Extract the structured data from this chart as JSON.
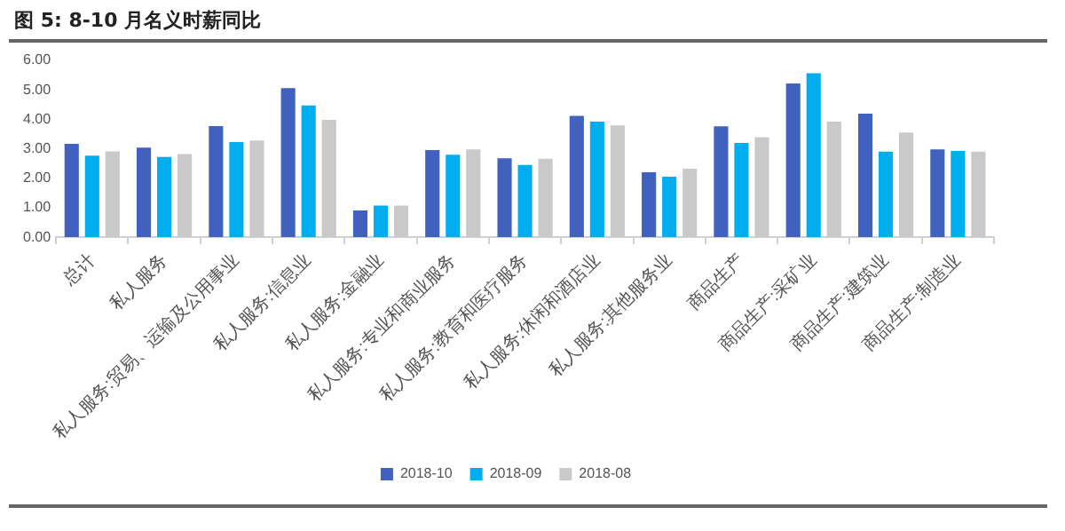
{
  "chart_data": {
    "type": "bar",
    "title": "图 5: 8-10 月名义时薪同比",
    "categories": [
      "总计",
      "私人服务",
      "私人服务:贸易、运输及公用事业",
      "私人服务:信息业",
      "私人服务:金融业",
      "私人服务:专业和商业服务",
      "私人服务:教育和医疗服务",
      "私人服务:休闲和酒店业",
      "私人服务:其他服务业",
      "商品生产",
      "商品生产:采矿业",
      "商品生产:建筑业",
      "商品生产:制造业"
    ],
    "series": [
      {
        "name": "2018-10",
        "color": "#4062be",
        "values": [
          3.17,
          3.04,
          3.77,
          5.06,
          0.91,
          2.96,
          2.68,
          4.12,
          2.2,
          3.76,
          5.22,
          4.19,
          2.98
        ]
      },
      {
        "name": "2018-09",
        "color": "#00aeef",
        "values": [
          2.77,
          2.72,
          3.23,
          4.47,
          1.07,
          2.8,
          2.45,
          3.92,
          2.05,
          3.2,
          5.56,
          2.9,
          2.93
        ]
      },
      {
        "name": "2018-08",
        "color": "#c9c9c9",
        "values": [
          2.91,
          2.82,
          3.28,
          3.98,
          1.07,
          2.98,
          2.66,
          3.79,
          2.32,
          3.39,
          3.92,
          3.55,
          2.9
        ]
      }
    ],
    "ylim": [
      0,
      6
    ],
    "yticks": [
      {
        "value": 0,
        "label": "0.00"
      },
      {
        "value": 1,
        "label": "1.00"
      },
      {
        "value": 2,
        "label": "2.00"
      },
      {
        "value": 3,
        "label": "3.00"
      },
      {
        "value": 4,
        "label": "4.00"
      },
      {
        "value": 5,
        "label": "5.00"
      },
      {
        "value": 6,
        "label": "6.00"
      }
    ],
    "grid": false,
    "legend": "bottom"
  }
}
